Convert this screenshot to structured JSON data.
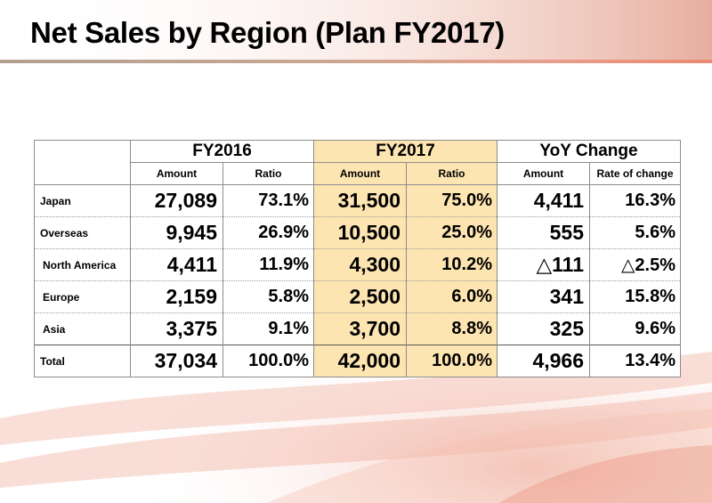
{
  "page": {
    "title": "Net Sales by Region (Plan FY2017)"
  },
  "table": {
    "groups": [
      "FY2016",
      "FY2017",
      "YoY Change"
    ],
    "subheaders": [
      "Amount",
      "Ratio",
      "Amount",
      "Ratio",
      "Amount",
      "Rate of change"
    ],
    "rows": [
      {
        "label": "Japan",
        "fy2016_amount": "27,089",
        "fy2016_ratio": "73.1%",
        "fy2017_amount": "31,500",
        "fy2017_ratio": "75.0%",
        "yoy_amount": "4,411",
        "yoy_rate": "16.3%"
      },
      {
        "label": "Overseas",
        "fy2016_amount": "9,945",
        "fy2016_ratio": "26.9%",
        "fy2017_amount": "10,500",
        "fy2017_ratio": "25.0%",
        "yoy_amount": "555",
        "yoy_rate": "5.6%"
      },
      {
        "label": "North America",
        "fy2016_amount": "4,411",
        "fy2016_ratio": "11.9%",
        "fy2017_amount": "4,300",
        "fy2017_ratio": "10.2%",
        "yoy_amount": "△111",
        "yoy_rate": "△2.5%"
      },
      {
        "label": "Europe",
        "fy2016_amount": "2,159",
        "fy2016_ratio": "5.8%",
        "fy2017_amount": "2,500",
        "fy2017_ratio": "6.0%",
        "yoy_amount": "341",
        "yoy_rate": "15.8%"
      },
      {
        "label": "Asia",
        "fy2016_amount": "3,375",
        "fy2016_ratio": "9.1%",
        "fy2017_amount": "3,700",
        "fy2017_ratio": "8.8%",
        "yoy_amount": "325",
        "yoy_rate": "9.6%"
      },
      {
        "label": "Total",
        "fy2016_amount": "37,034",
        "fy2016_ratio": "100.0%",
        "fy2017_amount": "42,000",
        "fy2017_ratio": "100.0%",
        "yoy_amount": "4,966",
        "yoy_rate": "13.4%"
      }
    ]
  },
  "colors": {
    "highlight": "#fde5b2",
    "accent": "#e98a74"
  }
}
